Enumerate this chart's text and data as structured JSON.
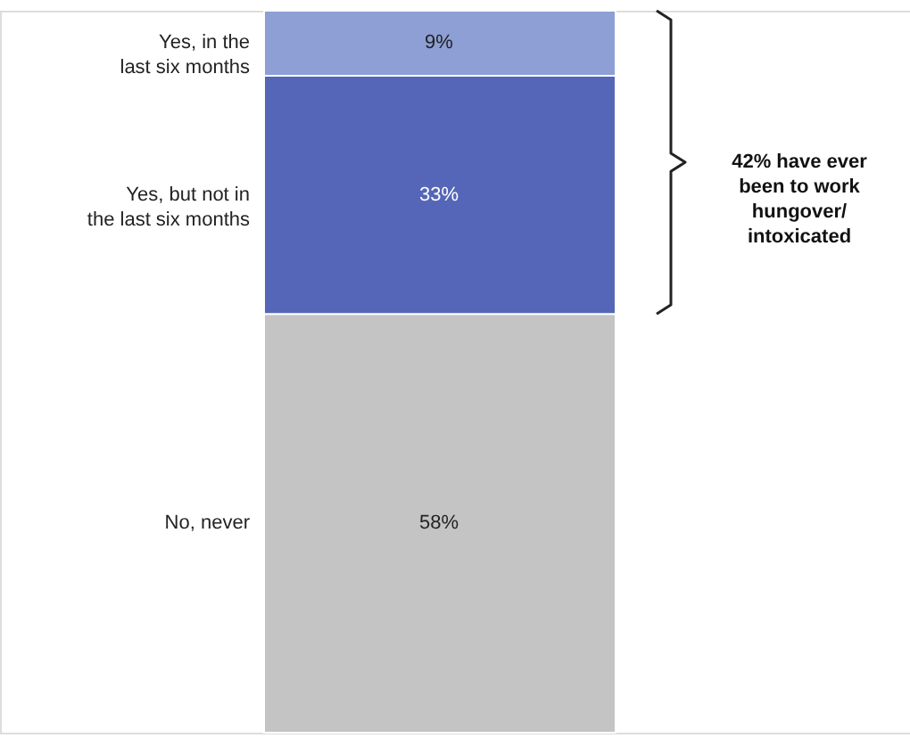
{
  "chart_data": {
    "type": "bar",
    "stacked": true,
    "categories": [
      null
    ],
    "series": [
      {
        "name": "No, never",
        "color": "#c4c4c4",
        "values": [
          58
        ],
        "value_labels": [
          "58%"
        ]
      },
      {
        "name": "Yes, but not in the last six months",
        "color": "#5566b8",
        "values": [
          33
        ],
        "value_labels": [
          "33%"
        ]
      },
      {
        "name": "Yes, in the last six months",
        "color": "#8e9fd6",
        "values": [
          9
        ],
        "value_labels": [
          "9%"
        ]
      }
    ],
    "annotations": [
      "42% have ever been to work hungover/ intoxicated"
    ]
  }
}
